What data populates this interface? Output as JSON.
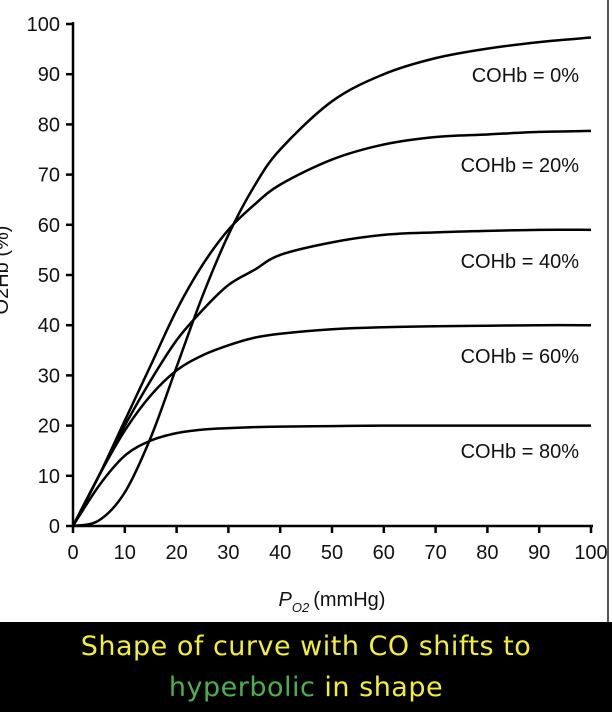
{
  "chart_data": {
    "type": "line",
    "title": "",
    "xlabel_main": "P",
    "xlabel_sub": "O2",
    "xlabel_unit": "(mmHg)",
    "ylabel": "O2Hb (%)",
    "xlim": [
      0,
      100
    ],
    "ylim": [
      0,
      100
    ],
    "xticks": [
      "0",
      "10",
      "20",
      "30",
      "40",
      "50",
      "60",
      "70",
      "80",
      "90",
      "100"
    ],
    "yticks": [
      "0",
      "10",
      "20",
      "30",
      "40",
      "50",
      "60",
      "70",
      "80",
      "90",
      "100"
    ],
    "grid": false,
    "x": [
      0,
      5,
      10,
      15,
      20,
      25,
      30,
      35,
      40,
      50,
      60,
      70,
      80,
      90,
      100
    ],
    "series": [
      {
        "name": "COHb = 0%",
        "values": [
          0,
          1.1,
          6.7,
          17.6,
          31.7,
          45.8,
          58.0,
          67.7,
          75.0,
          84.6,
          90.0,
          93.2,
          95.1,
          96.4,
          97.3
        ]
      },
      {
        "name": "COHb = 20%",
        "values": [
          0,
          10,
          21,
          32,
          43,
          52,
          59,
          64,
          68,
          73,
          76,
          77.5,
          78,
          78.5,
          78.7
        ]
      },
      {
        "name": "COHb = 40%",
        "values": [
          0,
          10,
          20,
          29,
          37,
          43,
          48,
          51,
          54,
          56.5,
          58,
          58.5,
          58.8,
          59,
          59
        ]
      },
      {
        "name": "COHb = 60%",
        "values": [
          0,
          10,
          19,
          26,
          31,
          34,
          36,
          37.5,
          38.3,
          39.2,
          39.6,
          39.8,
          39.9,
          40,
          40
        ]
      },
      {
        "name": "COHb = 80%",
        "values": [
          0,
          8,
          14,
          17,
          18.5,
          19.2,
          19.5,
          19.7,
          19.8,
          19.9,
          20,
          20,
          20,
          20,
          20
        ]
      }
    ]
  },
  "caption": {
    "line1": "Shape of curve with CO shifts to",
    "highlight": "hyperbolic",
    "rest": " in shape"
  },
  "colors": {
    "caption_bg": "#000000",
    "caption_text": "#f2ee3a",
    "caption_highlight": "#4caf50"
  }
}
